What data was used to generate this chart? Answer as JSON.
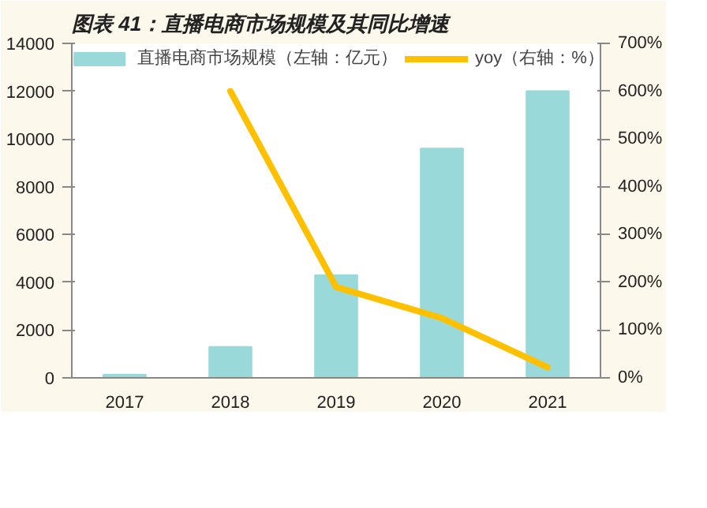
{
  "chart_data": {
    "type": "bar",
    "title": "图表 41：直播电商市场规模及其同比增速",
    "categories": [
      "2017",
      "2018",
      "2019",
      "2020",
      "2021"
    ],
    "series": [
      {
        "name": "直播电商市场规模（左轴：亿元）",
        "color": "#99d9d9",
        "values": [
          130,
          1300,
          4300,
          9600,
          12000
        ]
      },
      {
        "name": "yoy（右轴：%）",
        "type": "line",
        "axis": "y2",
        "color": "#ffc000",
        "values": [
          null,
          600,
          190,
          125,
          22
        ]
      }
    ],
    "ylim": [
      0,
      14000
    ],
    "yticks": [
      0,
      2000,
      4000,
      6000,
      8000,
      10000,
      12000,
      14000
    ],
    "y2lim": [
      0,
      700
    ],
    "y2ticks": [
      {
        "value": 0,
        "label": "0%"
      },
      {
        "value": 100,
        "label": "100%"
      },
      {
        "value": 200,
        "label": "200%"
      },
      {
        "value": 300,
        "label": "300%"
      },
      {
        "value": 400,
        "label": "400%"
      },
      {
        "value": 500,
        "label": "500%"
      },
      {
        "value": 600,
        "label": "600%"
      },
      {
        "value": 700,
        "label": "700%"
      }
    ],
    "legend": "top",
    "grid": false
  }
}
